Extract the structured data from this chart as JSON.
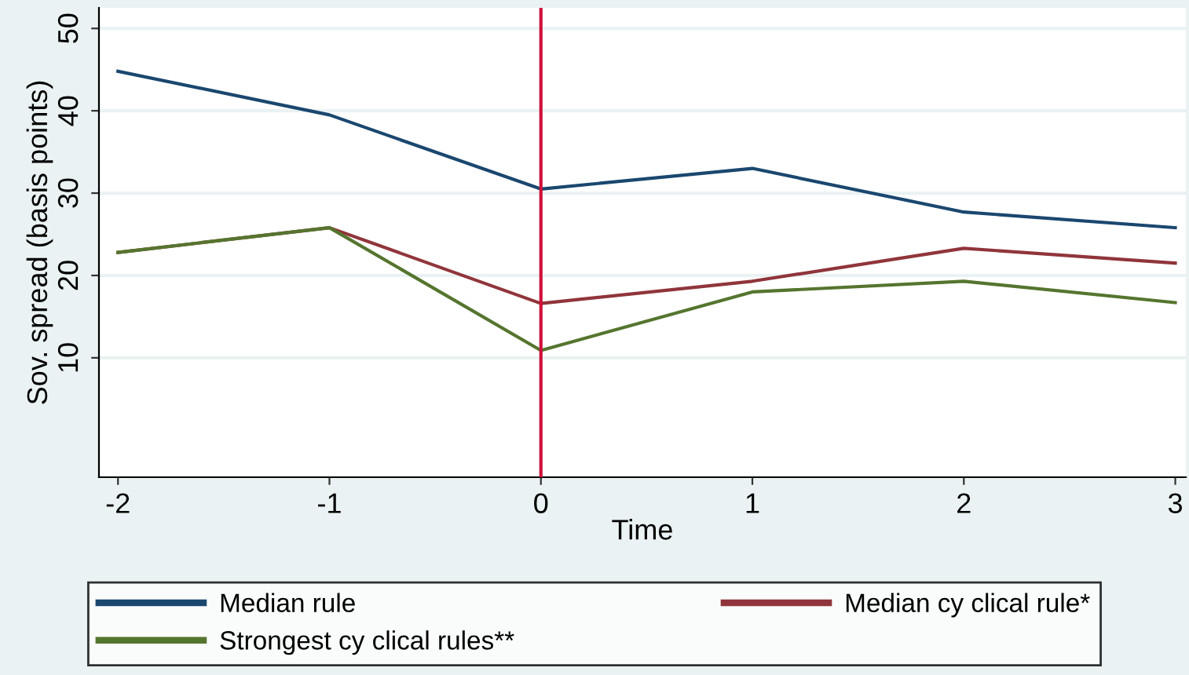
{
  "chart_data": {
    "type": "line",
    "xlabel": "Time",
    "ylabel": "Sov. spread (basis points)",
    "x": [
      -2,
      -1,
      0,
      1,
      2,
      3
    ],
    "series": [
      {
        "name": "Median rule",
        "color": "#1a476f",
        "values": [
          44.8,
          39.5,
          30.5,
          33.0,
          27.7,
          25.8
        ]
      },
      {
        "name": "Median cy clical rule*",
        "color": "#90353b",
        "values": [
          22.8,
          25.8,
          16.6,
          19.3,
          23.3,
          21.5
        ]
      },
      {
        "name": "Strongest cy clical rules**",
        "color": "#55752f",
        "values": [
          22.8,
          25.8,
          10.9,
          18.0,
          19.3,
          16.7
        ]
      }
    ],
    "xlim": [
      -2.09,
      3.05
    ],
    "xticks": [
      -2,
      -1,
      0,
      1,
      2,
      3
    ],
    "ylim": [
      -4.5,
      52.5
    ],
    "yticks": [
      10,
      20,
      30,
      40,
      50
    ],
    "ref_lines": [
      {
        "axis": "x",
        "value": 0,
        "color": "#d0103a"
      }
    ],
    "grid": "y",
    "legend": "bottom",
    "marker": "none",
    "line_style": "solid"
  }
}
